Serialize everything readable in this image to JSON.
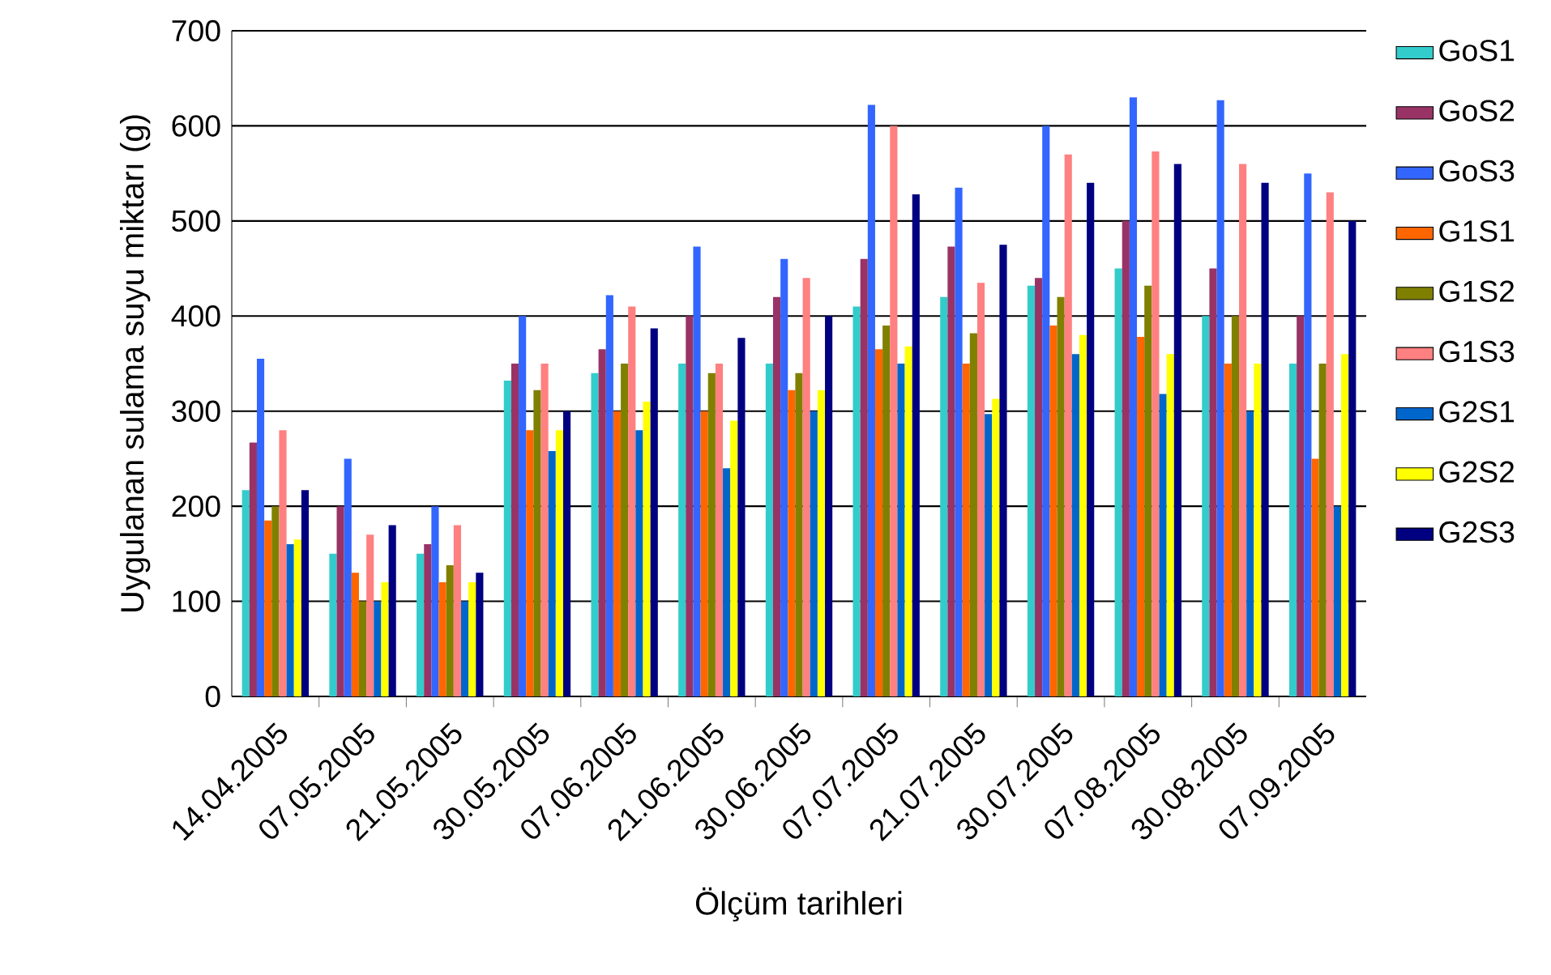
{
  "chart_data": {
    "type": "bar",
    "xlabel": "Ölçüm tarihleri",
    "ylabel": "Uygulanan sulama suyu miktarı (g)",
    "categories": [
      "14.04.2005",
      "07.05.2005",
      "21.05.2005",
      "30.05.2005",
      "07.06.2005",
      "21.06.2005",
      "30.06.2005",
      "07.07.2005",
      "21.07.2005",
      "30.07.2005",
      "07.08.2005",
      "30.08.2005",
      "07.09.2005"
    ],
    "series": [
      {
        "name": "GoS1",
        "color": "#33cccc",
        "values": [
          217,
          150,
          150,
          332,
          340,
          350,
          350,
          410,
          420,
          432,
          450,
          400,
          350
        ]
      },
      {
        "name": "GoS2",
        "color": "#993366",
        "values": [
          267,
          200,
          160,
          350,
          365,
          400,
          420,
          460,
          473,
          440,
          500,
          450,
          400
        ]
      },
      {
        "name": "GoS3",
        "color": "#3366ff",
        "values": [
          355,
          250,
          200,
          400,
          422,
          473,
          460,
          622,
          535,
          600,
          630,
          627,
          550
        ]
      },
      {
        "name": "G1S1",
        "color": "#ff6600",
        "values": [
          185,
          130,
          120,
          280,
          300,
          300,
          322,
          365,
          350,
          390,
          378,
          350,
          250
        ]
      },
      {
        "name": "G1S2",
        "color": "#808000",
        "values": [
          200,
          100,
          138,
          322,
          350,
          340,
          340,
          390,
          382,
          420,
          432,
          400,
          350
        ]
      },
      {
        "name": "G1S3",
        "color": "#ff8080",
        "values": [
          280,
          170,
          180,
          350,
          410,
          350,
          440,
          600,
          435,
          570,
          573,
          560,
          530
        ]
      },
      {
        "name": "G2S1",
        "color": "#0066cc",
        "values": [
          160,
          100,
          100,
          258,
          280,
          240,
          300,
          350,
          297,
          360,
          318,
          300,
          200
        ]
      },
      {
        "name": "G2S2",
        "color": "#ffff00",
        "values": [
          165,
          120,
          120,
          280,
          310,
          290,
          322,
          368,
          313,
          380,
          360,
          350,
          360
        ]
      },
      {
        "name": "G2S3",
        "color": "#000080",
        "values": [
          217,
          180,
          130,
          300,
          387,
          377,
          400,
          528,
          475,
          540,
          560,
          540,
          500
        ]
      }
    ],
    "ylim": [
      0,
      700
    ],
    "yticks": [
      0,
      100,
      200,
      300,
      400,
      500,
      600,
      700
    ],
    "grid": "y",
    "legend": "right"
  }
}
